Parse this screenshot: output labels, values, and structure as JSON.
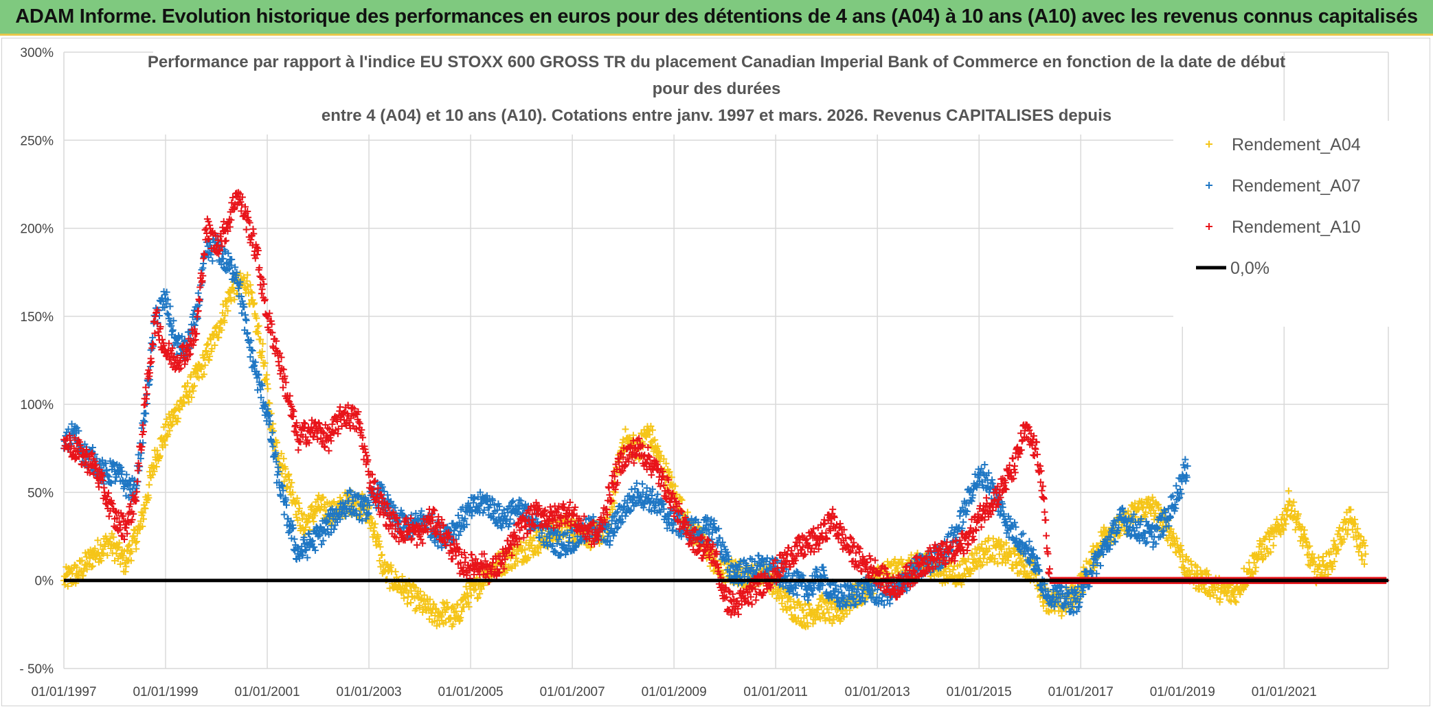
{
  "banner": {
    "title": "ADAM Informe. Evolution historique des performances en euros pour des détentions de 4 ans (A04) à 10 ans (A10) avec les revenus connus capitalisés"
  },
  "chart_data": {
    "type": "scatter",
    "title_lines": [
      "Performance par rapport à l'indice EU STOXX 600 GROSS TR  du placement Canadian Imperial Bank of Commerce en fonction de la date de début",
      "pour des durées",
      "entre 4 (A04) et 10 ans (A10). Cotations entre janv. 1997 et mars. 2026. Revenus CAPITALISES depuis"
    ],
    "xlabel": "",
    "ylabel": "",
    "xlim": [
      1997.0,
      2023.05
    ],
    "ylim": [
      -0.5,
      3.0
    ],
    "y_ticks": [
      -0.5,
      0,
      0.5,
      1.0,
      1.5,
      2.0,
      2.5,
      3.0
    ],
    "y_tick_labels": [
      "- 50%",
      "0%",
      "50%",
      "100%",
      "150%",
      "200%",
      "250%",
      "300%"
    ],
    "x_ticks": [
      1997,
      1999,
      2001,
      2003,
      2005,
      2007,
      2009,
      2011,
      2013,
      2015,
      2017,
      2019,
      2021
    ],
    "x_tick_labels": [
      "01/01/1997",
      "01/01/1999",
      "01/01/2001",
      "01/01/2003",
      "01/01/2005",
      "01/01/2007",
      "01/01/2009",
      "01/01/2011",
      "01/01/2013",
      "01/01/2015",
      "01/01/2017",
      "01/01/2019",
      "01/01/2021"
    ],
    "reference_line": {
      "name": "0,0%",
      "y": 0,
      "color": "#000000"
    },
    "legend_position": "top-right",
    "series": [
      {
        "name": "Rendement_A04",
        "color": "#f5c518",
        "points": [
          [
            1997.0,
            0.0
          ],
          [
            1997.3,
            0.05
          ],
          [
            1997.6,
            0.15
          ],
          [
            1997.9,
            0.22
          ],
          [
            1998.2,
            0.1
          ],
          [
            1998.5,
            0.3
          ],
          [
            1998.8,
            0.7
          ],
          [
            1999.1,
            0.9
          ],
          [
            1999.4,
            1.05
          ],
          [
            1999.7,
            1.2
          ],
          [
            2000.0,
            1.4
          ],
          [
            2000.3,
            1.65
          ],
          [
            2000.6,
            1.7
          ],
          [
            2000.9,
            1.3
          ],
          [
            2001.1,
            0.85
          ],
          [
            2001.3,
            0.65
          ],
          [
            2001.5,
            0.5
          ],
          [
            2001.7,
            0.3
          ],
          [
            2002.0,
            0.42
          ],
          [
            2002.3,
            0.38
          ],
          [
            2002.6,
            0.45
          ],
          [
            2002.9,
            0.42
          ],
          [
            2003.1,
            0.3
          ],
          [
            2003.3,
            0.05
          ],
          [
            2003.5,
            0.0
          ],
          [
            2003.7,
            -0.05
          ],
          [
            2003.9,
            -0.1
          ],
          [
            2004.1,
            -0.15
          ],
          [
            2004.3,
            -0.2
          ],
          [
            2004.5,
            -0.18
          ],
          [
            2004.7,
            -0.22
          ],
          [
            2004.9,
            -0.1
          ],
          [
            2005.1,
            -0.05
          ],
          [
            2005.3,
            0.05
          ],
          [
            2005.6,
            0.1
          ],
          [
            2005.9,
            0.15
          ],
          [
            2006.2,
            0.2
          ],
          [
            2006.5,
            0.25
          ],
          [
            2006.8,
            0.3
          ],
          [
            2007.1,
            0.28
          ],
          [
            2007.4,
            0.25
          ],
          [
            2007.7,
            0.3
          ],
          [
            2008.0,
            0.8
          ],
          [
            2008.3,
            0.75
          ],
          [
            2008.5,
            0.85
          ],
          [
            2008.7,
            0.7
          ],
          [
            2009.0,
            0.5
          ],
          [
            2009.3,
            0.3
          ],
          [
            2009.6,
            0.2
          ],
          [
            2009.9,
            0.05
          ],
          [
            2010.2,
            0.05
          ],
          [
            2010.5,
            0.02
          ],
          [
            2010.8,
            0.05
          ],
          [
            2011.0,
            -0.05
          ],
          [
            2011.3,
            -0.15
          ],
          [
            2011.6,
            -0.2
          ],
          [
            2011.9,
            -0.15
          ],
          [
            2012.2,
            -0.2
          ],
          [
            2012.5,
            -0.1
          ],
          [
            2012.8,
            -0.05
          ],
          [
            2013.1,
            0.05
          ],
          [
            2013.4,
            0.05
          ],
          [
            2013.7,
            0.08
          ],
          [
            2014.0,
            0.1
          ],
          [
            2014.3,
            0.05
          ],
          [
            2014.6,
            0.03
          ],
          [
            2014.9,
            0.12
          ],
          [
            2015.2,
            0.18
          ],
          [
            2015.5,
            0.15
          ],
          [
            2015.8,
            0.1
          ],
          [
            2016.1,
            0.05
          ],
          [
            2016.3,
            -0.1
          ],
          [
            2016.6,
            -0.15
          ],
          [
            2016.9,
            -0.08
          ],
          [
            2017.2,
            0.1
          ],
          [
            2017.5,
            0.28
          ],
          [
            2017.8,
            0.3
          ],
          [
            2018.1,
            0.4
          ],
          [
            2018.4,
            0.42
          ],
          [
            2018.7,
            0.3
          ],
          [
            2018.9,
            0.2
          ],
          [
            2019.1,
            0.05
          ],
          [
            2019.4,
            0.0
          ],
          [
            2019.7,
            -0.05
          ],
          [
            2020.0,
            -0.08
          ],
          [
            2020.3,
            0.05
          ],
          [
            2020.5,
            0.15
          ],
          [
            2020.8,
            0.25
          ],
          [
            2021.0,
            0.35
          ],
          [
            2021.1,
            0.45
          ],
          [
            2021.3,
            0.3
          ],
          [
            2021.6,
            0.05
          ],
          [
            2021.9,
            0.1
          ],
          [
            2022.1,
            0.25
          ],
          [
            2022.3,
            0.35
          ],
          [
            2022.5,
            0.2
          ],
          [
            2022.6,
            0.15
          ]
        ]
      },
      {
        "name": "Rendement_A07",
        "color": "#1f77c4",
        "points": [
          [
            1997.0,
            0.75
          ],
          [
            1997.2,
            0.85
          ],
          [
            1997.4,
            0.72
          ],
          [
            1997.6,
            0.68
          ],
          [
            1997.8,
            0.6
          ],
          [
            1998.0,
            0.62
          ],
          [
            1998.2,
            0.55
          ],
          [
            1998.4,
            0.5
          ],
          [
            1998.6,
            0.95
          ],
          [
            1998.8,
            1.5
          ],
          [
            1999.0,
            1.6
          ],
          [
            1999.2,
            1.35
          ],
          [
            1999.4,
            1.3
          ],
          [
            1999.6,
            1.5
          ],
          [
            1999.8,
            1.85
          ],
          [
            2000.0,
            1.9
          ],
          [
            2000.2,
            1.8
          ],
          [
            2000.4,
            1.75
          ],
          [
            2000.6,
            1.4
          ],
          [
            2000.8,
            1.15
          ],
          [
            2001.0,
            0.95
          ],
          [
            2001.2,
            0.6
          ],
          [
            2001.4,
            0.35
          ],
          [
            2001.6,
            0.15
          ],
          [
            2001.8,
            0.2
          ],
          [
            2002.0,
            0.25
          ],
          [
            2002.3,
            0.35
          ],
          [
            2002.6,
            0.45
          ],
          [
            2002.9,
            0.4
          ],
          [
            2003.2,
            0.5
          ],
          [
            2003.5,
            0.35
          ],
          [
            2003.8,
            0.3
          ],
          [
            2004.1,
            0.35
          ],
          [
            2004.4,
            0.25
          ],
          [
            2004.7,
            0.3
          ],
          [
            2005.0,
            0.4
          ],
          [
            2005.3,
            0.45
          ],
          [
            2005.6,
            0.35
          ],
          [
            2005.9,
            0.4
          ],
          [
            2006.2,
            0.35
          ],
          [
            2006.5,
            0.25
          ],
          [
            2006.8,
            0.2
          ],
          [
            2007.1,
            0.25
          ],
          [
            2007.4,
            0.3
          ],
          [
            2007.7,
            0.25
          ],
          [
            2008.0,
            0.4
          ],
          [
            2008.3,
            0.5
          ],
          [
            2008.6,
            0.45
          ],
          [
            2008.9,
            0.35
          ],
          [
            2009.2,
            0.3
          ],
          [
            2009.5,
            0.28
          ],
          [
            2009.8,
            0.3
          ],
          [
            2010.1,
            0.05
          ],
          [
            2010.4,
            0.05
          ],
          [
            2010.7,
            0.08
          ],
          [
            2011.0,
            0.05
          ],
          [
            2011.3,
            0.0
          ],
          [
            2011.6,
            -0.05
          ],
          [
            2011.9,
            0.02
          ],
          [
            2012.2,
            -0.1
          ],
          [
            2012.5,
            -0.08
          ],
          [
            2012.8,
            -0.05
          ],
          [
            2013.1,
            -0.08
          ],
          [
            2013.4,
            -0.05
          ],
          [
            2013.7,
            0.05
          ],
          [
            2014.0,
            0.1
          ],
          [
            2014.3,
            0.15
          ],
          [
            2014.6,
            0.3
          ],
          [
            2014.9,
            0.55
          ],
          [
            2015.1,
            0.6
          ],
          [
            2015.3,
            0.5
          ],
          [
            2015.6,
            0.3
          ],
          [
            2015.9,
            0.2
          ],
          [
            2016.1,
            0.1
          ],
          [
            2016.3,
            -0.05
          ],
          [
            2016.6,
            -0.1
          ],
          [
            2016.9,
            -0.12
          ],
          [
            2017.2,
            0.05
          ],
          [
            2017.5,
            0.2
          ],
          [
            2017.8,
            0.35
          ],
          [
            2018.1,
            0.3
          ],
          [
            2018.4,
            0.25
          ],
          [
            2018.7,
            0.35
          ],
          [
            2018.9,
            0.5
          ],
          [
            2019.1,
            0.65
          ]
        ]
      },
      {
        "name": "Rendement_A10",
        "color": "#e8141a",
        "points": [
          [
            1997.0,
            0.8
          ],
          [
            1997.2,
            0.75
          ],
          [
            1997.4,
            0.7
          ],
          [
            1997.6,
            0.65
          ],
          [
            1997.8,
            0.5
          ],
          [
            1998.0,
            0.35
          ],
          [
            1998.2,
            0.3
          ],
          [
            1998.4,
            0.45
          ],
          [
            1998.6,
            1.0
          ],
          [
            1998.8,
            1.5
          ],
          [
            1999.0,
            1.3
          ],
          [
            1999.2,
            1.25
          ],
          [
            1999.4,
            1.3
          ],
          [
            1999.6,
            1.4
          ],
          [
            1999.8,
            2.0
          ],
          [
            2000.0,
            1.9
          ],
          [
            2000.2,
            2.0
          ],
          [
            2000.4,
            2.2
          ],
          [
            2000.6,
            2.05
          ],
          [
            2000.8,
            1.85
          ],
          [
            2001.0,
            1.5
          ],
          [
            2001.2,
            1.3
          ],
          [
            2001.4,
            1.05
          ],
          [
            2001.6,
            0.8
          ],
          [
            2001.8,
            0.85
          ],
          [
            2002.0,
            0.85
          ],
          [
            2002.2,
            0.8
          ],
          [
            2002.5,
            0.95
          ],
          [
            2002.8,
            0.9
          ],
          [
            2003.0,
            0.6
          ],
          [
            2003.2,
            0.45
          ],
          [
            2003.4,
            0.35
          ],
          [
            2003.6,
            0.28
          ],
          [
            2003.8,
            0.3
          ],
          [
            2004.0,
            0.25
          ],
          [
            2004.2,
            0.35
          ],
          [
            2004.4,
            0.3
          ],
          [
            2004.6,
            0.2
          ],
          [
            2004.8,
            0.1
          ],
          [
            2005.0,
            0.08
          ],
          [
            2005.2,
            0.1
          ],
          [
            2005.4,
            0.05
          ],
          [
            2005.6,
            0.1
          ],
          [
            2005.8,
            0.2
          ],
          [
            2006.0,
            0.3
          ],
          [
            2006.3,
            0.38
          ],
          [
            2006.6,
            0.35
          ],
          [
            2006.9,
            0.4
          ],
          [
            2007.2,
            0.3
          ],
          [
            2007.5,
            0.25
          ],
          [
            2007.8,
            0.55
          ],
          [
            2008.0,
            0.7
          ],
          [
            2008.3,
            0.75
          ],
          [
            2008.6,
            0.65
          ],
          [
            2008.9,
            0.5
          ],
          [
            2009.2,
            0.3
          ],
          [
            2009.5,
            0.2
          ],
          [
            2009.8,
            0.15
          ],
          [
            2010.0,
            -0.1
          ],
          [
            2010.2,
            -0.15
          ],
          [
            2010.4,
            -0.1
          ],
          [
            2010.6,
            -0.05
          ],
          [
            2010.8,
            0.0
          ],
          [
            2011.0,
            0.05
          ],
          [
            2011.3,
            0.15
          ],
          [
            2011.6,
            0.2
          ],
          [
            2011.9,
            0.25
          ],
          [
            2012.1,
            0.35
          ],
          [
            2012.4,
            0.2
          ],
          [
            2012.7,
            0.1
          ],
          [
            2013.0,
            0.05
          ],
          [
            2013.3,
            -0.05
          ],
          [
            2013.6,
            0.02
          ],
          [
            2013.9,
            0.1
          ],
          [
            2014.2,
            0.15
          ],
          [
            2014.5,
            0.15
          ],
          [
            2014.8,
            0.25
          ],
          [
            2015.1,
            0.4
          ],
          [
            2015.4,
            0.5
          ],
          [
            2015.7,
            0.65
          ],
          [
            2015.9,
            0.85
          ],
          [
            2016.1,
            0.75
          ],
          [
            2016.2,
            0.65
          ],
          [
            2016.4,
            0.0
          ],
          [
            2017.0,
            0.0
          ],
          [
            2018.0,
            0.0
          ],
          [
            2019.0,
            0.0
          ],
          [
            2020.0,
            0.0
          ],
          [
            2021.0,
            0.0
          ],
          [
            2022.0,
            0.0
          ],
          [
            2023.0,
            0.0
          ]
        ]
      }
    ]
  }
}
